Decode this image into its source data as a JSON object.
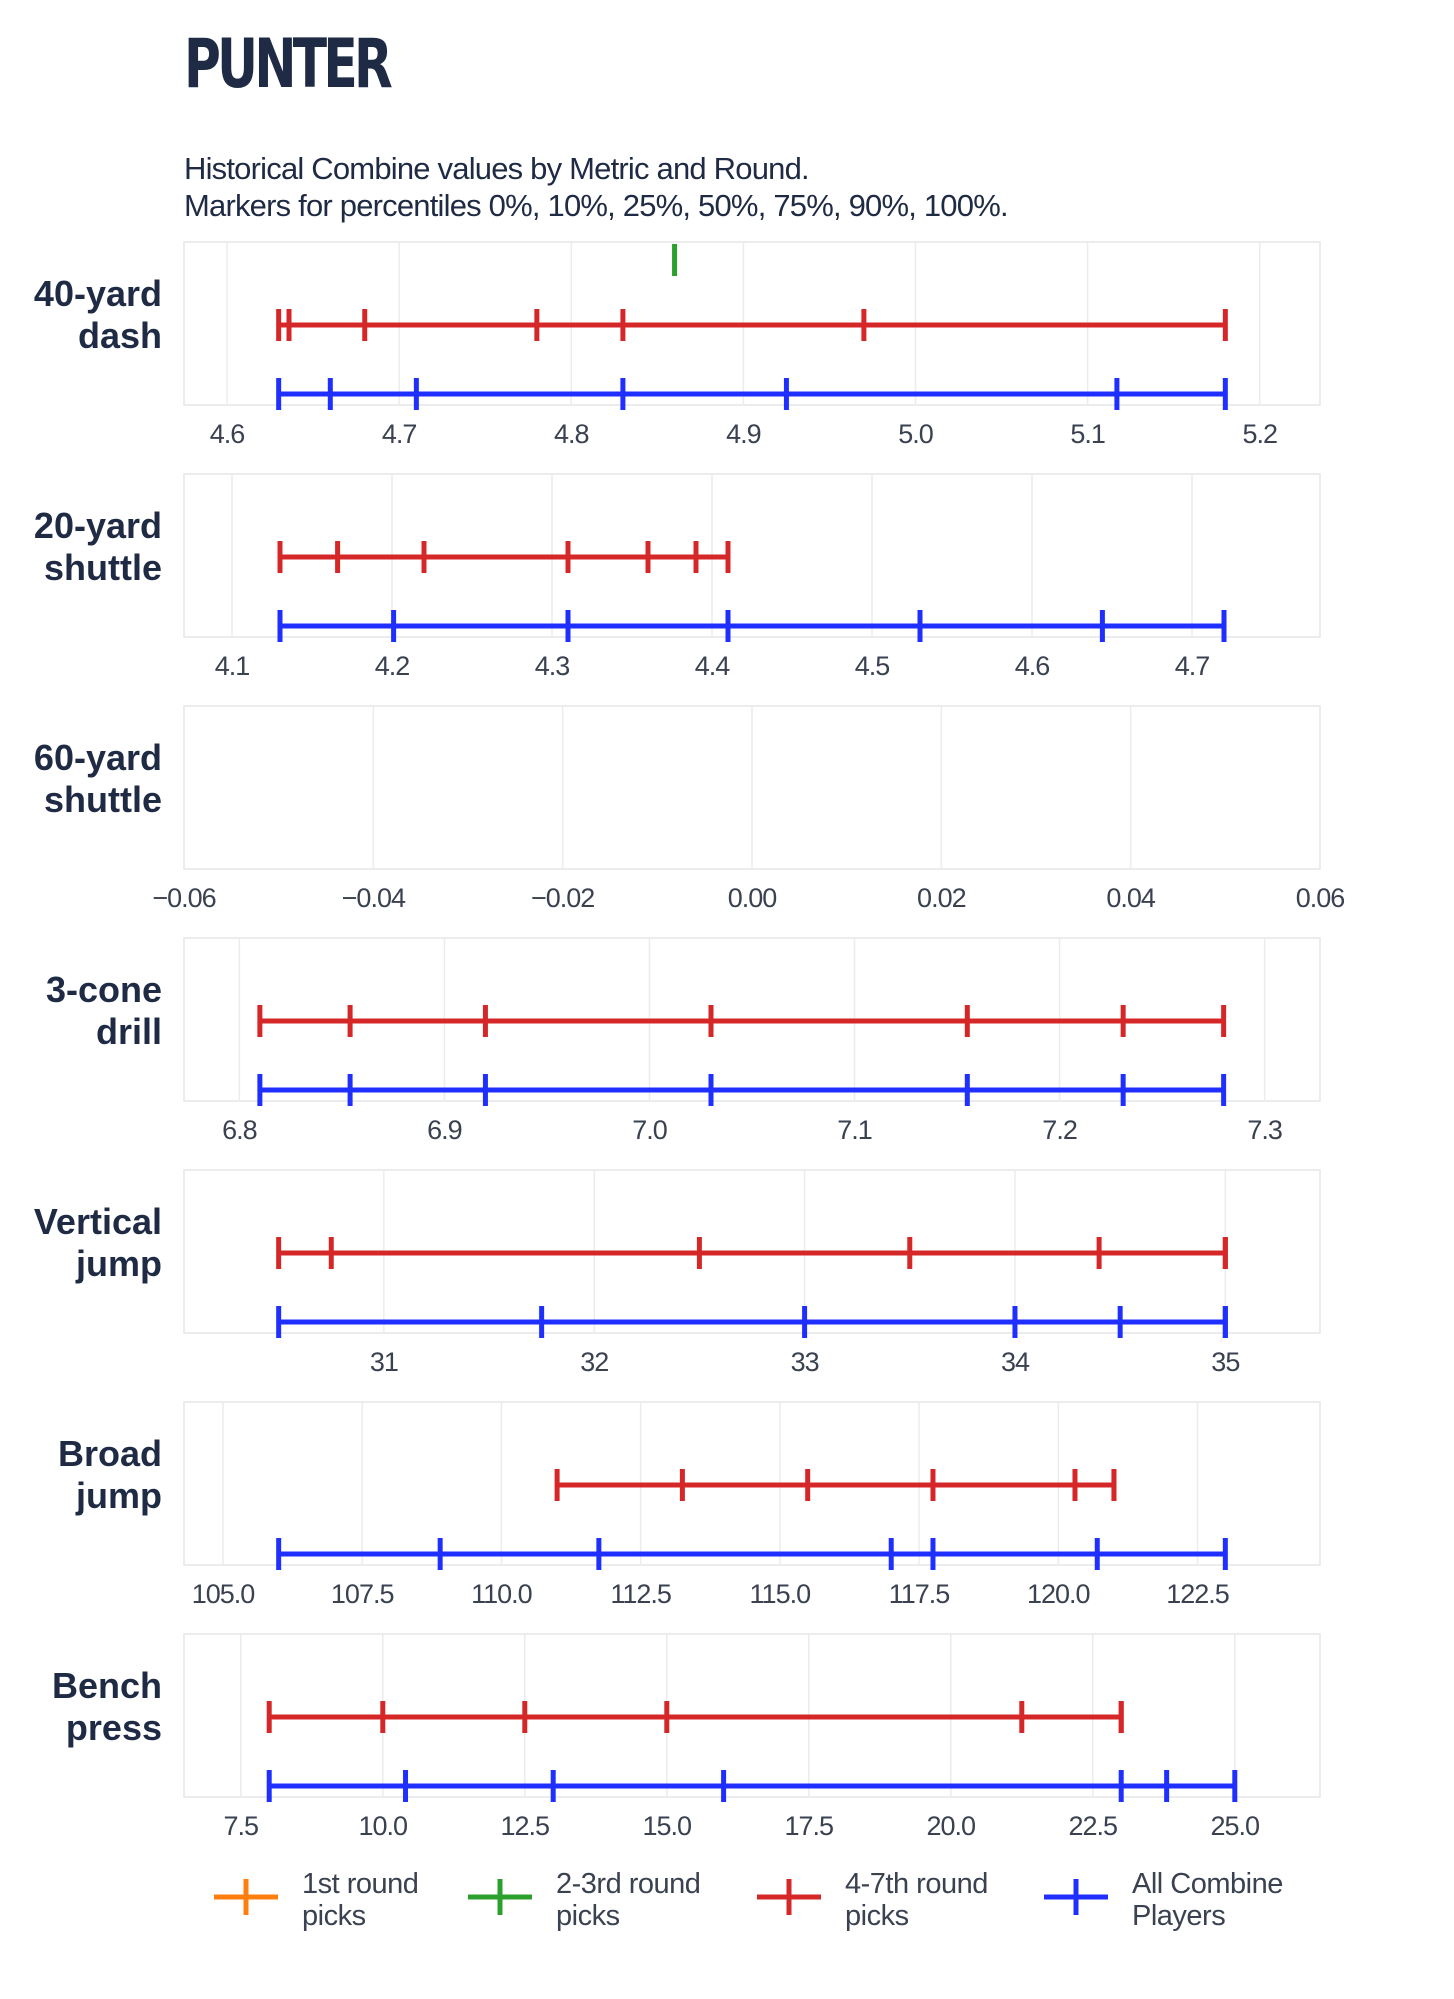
{
  "title": "PUNTER",
  "subtitle": [
    "Historical Combine values by Metric and Round.",
    "Markers for percentiles 0%, 10%, 25%, 50%, 75%, 90%, 100%."
  ],
  "colors": {
    "1st_round": "#ff7f0e",
    "2-3rd_round": "#2ca02c",
    "4-7th_round": "#d62728",
    "all_combine": "#1f2fff"
  },
  "legend": [
    {
      "key": "1st_round",
      "line1": "1st round",
      "line2": "picks",
      "color": "#ff7f0e"
    },
    {
      "key": "2-3rd_round",
      "line1": "2-3rd round",
      "line2": "picks",
      "color": "#2ca02c"
    },
    {
      "key": "4-7th_round",
      "line1": "4-7th round",
      "line2": "picks",
      "color": "#d62728"
    },
    {
      "key": "all_combine",
      "line1": "All Combine",
      "line2": "Players",
      "color": "#1f2fff"
    }
  ],
  "chart_data": [
    {
      "type": "percentile-range",
      "label": [
        "40-yard",
        "dash"
      ],
      "xlim": [
        4.575,
        5.235
      ],
      "ticks": [
        4.6,
        4.7,
        4.8,
        4.9,
        5.0,
        5.1,
        5.2
      ],
      "tick_labels": [
        "4.6",
        "4.7",
        "4.8",
        "4.9",
        "5.0",
        "5.1",
        "5.2"
      ],
      "series": [
        {
          "key": "2-3rd_round",
          "values": [
            4.86
          ]
        },
        {
          "key": "4-7th_round",
          "values": [
            4.63,
            4.636,
            4.68,
            4.78,
            4.83,
            4.97,
            5.18
          ]
        },
        {
          "key": "all_combine",
          "values": [
            4.63,
            4.66,
            4.71,
            4.83,
            4.925,
            5.117,
            5.18
          ]
        }
      ]
    },
    {
      "type": "percentile-range",
      "label": [
        "20-yard",
        "shuttle"
      ],
      "xlim": [
        4.07,
        4.78
      ],
      "ticks": [
        4.1,
        4.2,
        4.3,
        4.4,
        4.5,
        4.6,
        4.7
      ],
      "tick_labels": [
        "4.1",
        "4.2",
        "4.3",
        "4.4",
        "4.5",
        "4.6",
        "4.7"
      ],
      "series": [
        {
          "key": "4-7th_round",
          "values": [
            4.13,
            4.166,
            4.22,
            4.31,
            4.36,
            4.39,
            4.41
          ]
        },
        {
          "key": "all_combine",
          "values": [
            4.13,
            4.201,
            4.31,
            4.41,
            4.53,
            4.644,
            4.72
          ]
        }
      ]
    },
    {
      "type": "percentile-range",
      "label": [
        "60-yard",
        "shuttle"
      ],
      "xlim": [
        -0.06,
        0.06
      ],
      "ticks": [
        -0.06,
        -0.04,
        -0.02,
        0.0,
        0.02,
        0.04,
        0.06
      ],
      "tick_labels": [
        "−0.06",
        "−0.04",
        "−0.02",
        "0.00",
        "0.02",
        "0.04",
        "0.06"
      ],
      "series": []
    },
    {
      "type": "percentile-range",
      "label": [
        "3-cone",
        "drill"
      ],
      "xlim": [
        6.773,
        7.327
      ],
      "ticks": [
        6.8,
        6.9,
        7.0,
        7.1,
        7.2,
        7.3
      ],
      "tick_labels": [
        "6.8",
        "6.9",
        "7.0",
        "7.1",
        "7.2",
        "7.3"
      ],
      "series": [
        {
          "key": "4-7th_round",
          "values": [
            6.81,
            6.854,
            6.92,
            7.03,
            7.155,
            7.231,
            7.28
          ]
        },
        {
          "key": "all_combine",
          "values": [
            6.81,
            6.854,
            6.92,
            7.03,
            7.155,
            7.231,
            7.28
          ]
        }
      ]
    },
    {
      "type": "percentile-range",
      "label": [
        "Vertical",
        "jump"
      ],
      "xlim": [
        30.05,
        35.45
      ],
      "ticks": [
        31,
        32,
        33,
        34,
        35
      ],
      "tick_labels": [
        "31",
        "32",
        "33",
        "34",
        "35"
      ],
      "series": [
        {
          "key": "4-7th_round",
          "values": [
            30.5,
            30.75,
            32.5,
            33.5,
            34.4,
            35.0,
            35.0
          ]
        },
        {
          "key": "all_combine",
          "values": [
            30.5,
            31.75,
            33.0,
            34.0,
            34.5,
            35.0,
            35.0
          ]
        }
      ]
    },
    {
      "type": "percentile-range",
      "label": [
        "Broad",
        "jump"
      ],
      "xlim": [
        104.3,
        124.7
      ],
      "ticks": [
        105.0,
        107.5,
        110.0,
        112.5,
        115.0,
        117.5,
        120.0,
        122.5
      ],
      "tick_labels": [
        "105.0",
        "107.5",
        "110.0",
        "112.5",
        "115.0",
        "117.5",
        "120.0",
        "122.5"
      ],
      "series": [
        {
          "key": "4-7th_round",
          "values": [
            111.0,
            113.25,
            115.5,
            117.75,
            120.3,
            121.0,
            121.0
          ]
        },
        {
          "key": "all_combine",
          "values": [
            106.0,
            108.9,
            111.75,
            117.0,
            117.75,
            120.7,
            123.0
          ]
        }
      ]
    },
    {
      "type": "percentile-range",
      "label": [
        "Bench",
        "press"
      ],
      "xlim": [
        6.5,
        26.5
      ],
      "ticks": [
        7.5,
        10.0,
        12.5,
        15.0,
        17.5,
        20.0,
        22.5,
        25.0
      ],
      "tick_labels": [
        "7.5",
        "10.0",
        "12.5",
        "15.0",
        "17.5",
        "20.0",
        "22.5",
        "25.0"
      ],
      "series": [
        {
          "key": "4-7th_round",
          "values": [
            8.0,
            10.0,
            12.5,
            15.0,
            21.25,
            23.0,
            23.0
          ]
        },
        {
          "key": "all_combine",
          "values": [
            8.0,
            10.4,
            13.0,
            16.0,
            23.0,
            23.8,
            25.0
          ]
        }
      ]
    }
  ]
}
